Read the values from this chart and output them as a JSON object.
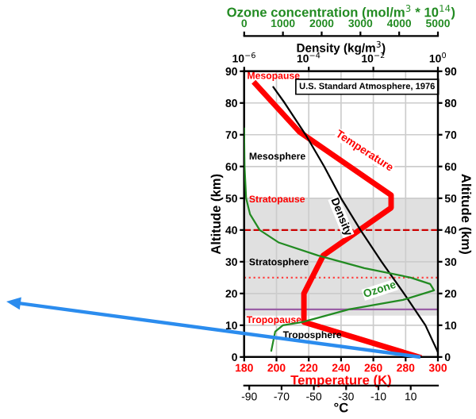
{
  "chart_data": [
    {
      "type": "line",
      "xlabel": "Temperature (K)",
      "ylabel": "Altitude (km)",
      "y2label": "Altitude (km)",
      "x2label": "°C",
      "xlim": [
        180,
        300
      ],
      "xticks": [
        180,
        200,
        220,
        240,
        260,
        280,
        300
      ],
      "x2lim": [
        -93.15,
        26.85
      ],
      "x2ticks": [
        -90,
        -70,
        -50,
        -30,
        -10,
        10
      ],
      "ylim": [
        0,
        90
      ],
      "yticks": [
        0,
        10,
        20,
        30,
        40,
        50,
        60,
        70,
        80,
        90
      ],
      "y2lim": [
        0,
        90
      ],
      "y2ticks": [
        0,
        10,
        20,
        30,
        40,
        50,
        60,
        70,
        80,
        90
      ],
      "grid": true,
      "series": [
        {
          "name": "Temperature",
          "color": "#ff0000",
          "x": [
            288,
            217,
            217,
            229,
            271,
            271,
            214,
            187
          ],
          "values": [
            0,
            11,
            20,
            32,
            47,
            51,
            71,
            86
          ]
        }
      ],
      "bands": [
        {
          "axis": "y",
          "from": 13,
          "to": 50,
          "color": "#e0e0e0"
        }
      ],
      "ref_lines": [
        {
          "axis": "y",
          "value": 40,
          "color": "#cc0000",
          "line_style": "dashed"
        },
        {
          "axis": "y",
          "value": 25,
          "color": "#ff4444",
          "line_style": "dotted"
        },
        {
          "axis": "y",
          "value": 15,
          "color": "#9a5fa6",
          "line_style": "solid"
        }
      ],
      "annotations": [
        "Mesopause",
        "Mesosphere",
        "Stratopause",
        "Stratosphere",
        "Tropopause",
        "Troposphere",
        "U.S. Standard Atmosphere, 1976"
      ]
    },
    {
      "type": "line",
      "xlabel": "Density (kg/m$^{3}$)",
      "log": "x",
      "xlim": [
        1e-06,
        1
      ],
      "xticks": [
        {
          "value": 1e-06,
          "label": "10$^{−6}$"
        },
        {
          "value": 0.0001,
          "label": "10$^{−4}$"
        },
        {
          "value": 0.01,
          "label": "10$^{−2}$"
        },
        {
          "value": 1,
          "label": "10$^{0}$"
        }
      ],
      "ylim": [
        0,
        90
      ],
      "tick_labels": "x",
      "series": [
        {
          "name": "Density",
          "color": "#000000",
          "x": [
            1,
            0.41,
            0.089,
            0.018,
            0.004,
            0.001,
            0.0003,
            8e-05,
            1.8e-05,
            8e-06
          ],
          "values": [
            1.5,
            10,
            20,
            30,
            40,
            50,
            60,
            70,
            80,
            85
          ]
        }
      ]
    },
    {
      "type": "line",
      "xlabel": "Ozone concentration (mol/m$^{3}$ * 10$^{14}$)",
      "xlim": [
        0,
        5000
      ],
      "xticks": [
        0,
        1000,
        2000,
        3000,
        4000,
        5000
      ],
      "ylim": [
        0,
        90
      ],
      "tick_labels": "x",
      "series": [
        {
          "name": "Ozone",
          "color": "#228b22",
          "x": [
            700,
            750,
            800,
            1000,
            1500,
            2700,
            4100,
            4900,
            4800,
            4300,
            3100,
            1900,
            900,
            400,
            150,
            50,
            10,
            0,
            0
          ],
          "values": [
            2,
            5,
            8,
            10,
            11,
            15,
            18,
            21,
            23,
            25,
            28,
            32,
            36,
            40,
            45,
            50,
            60,
            70,
            72
          ]
        }
      ]
    }
  ]
}
